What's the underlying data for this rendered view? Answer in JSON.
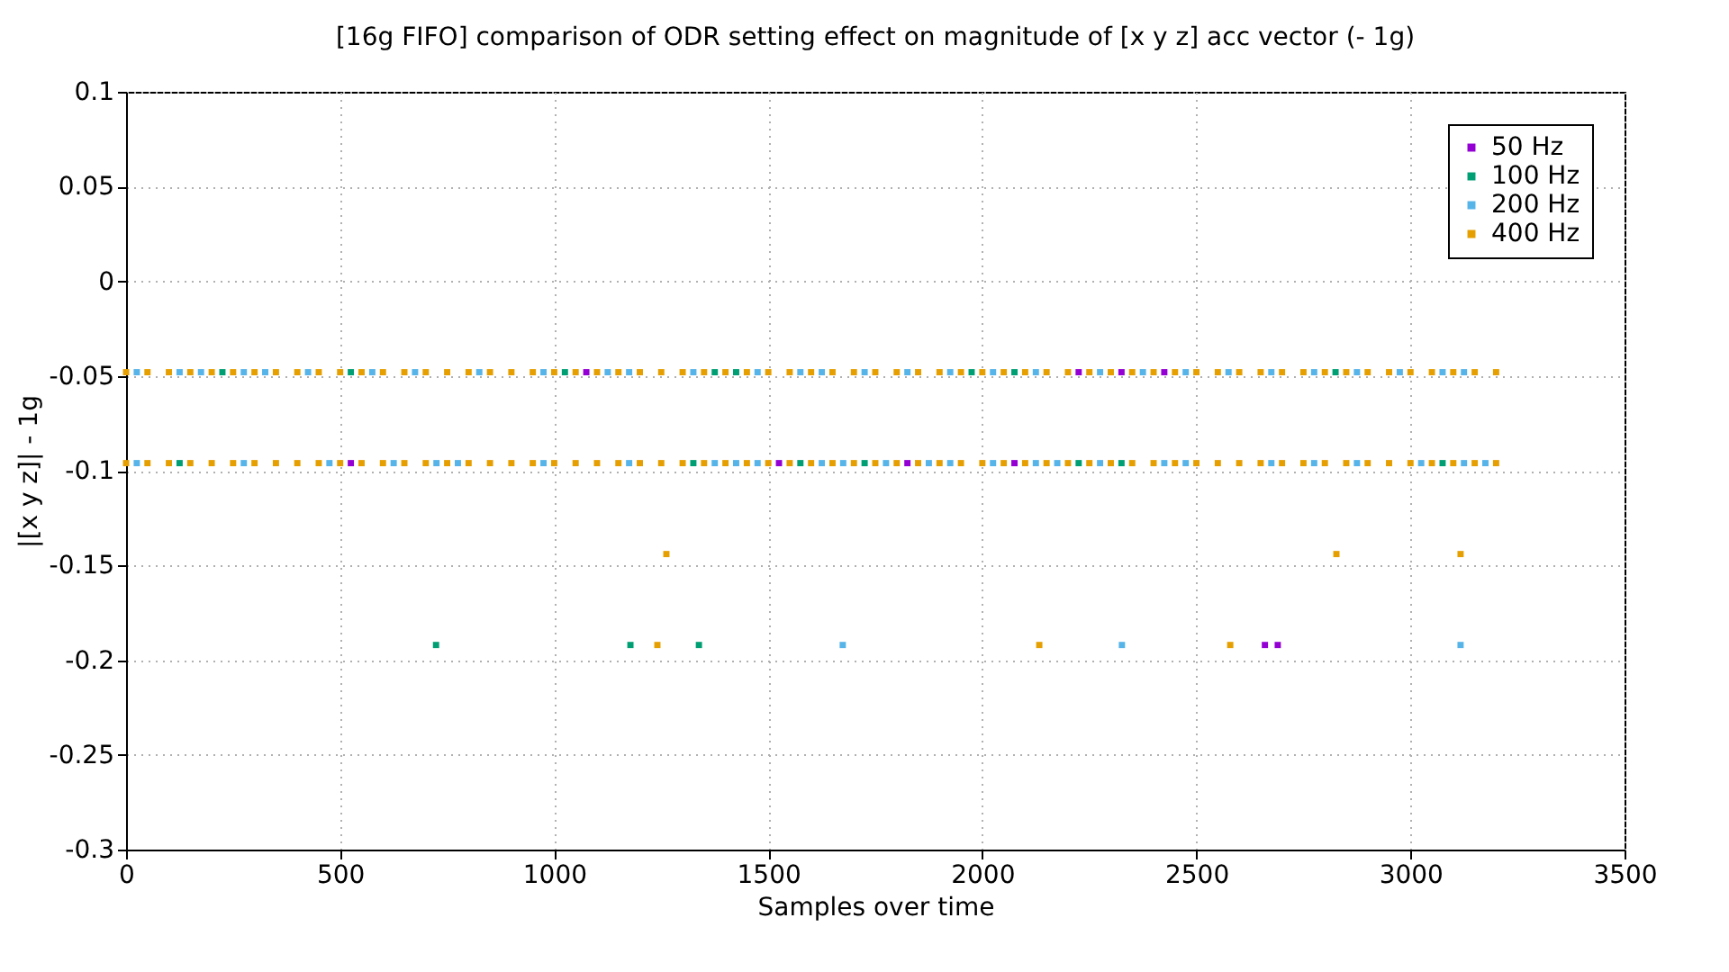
{
  "chart_data": {
    "type": "scatter",
    "title": "[16g FIFO] comparison of ODR setting effect on magnitude of [x y z] acc vector (- 1g)",
    "xlabel": "Samples over time",
    "ylabel": "|[x y z]| - 1g",
    "xlim": [
      0,
      3500
    ],
    "xticks": [
      0,
      500,
      1000,
      1500,
      2000,
      2500,
      3000,
      3500
    ],
    "ylim": [
      -0.3,
      0.1
    ],
    "yticks": [
      -0.3,
      -0.25,
      -0.2,
      -0.15,
      -0.1,
      -0.05,
      0,
      0.05,
      0.1
    ],
    "grid": true,
    "legend": "top right",
    "marker": "square",
    "series": [
      {
        "name": "50 Hz",
        "color": "#9400d3",
        "x": [
          1075,
          2225,
          2325,
          2425,
          525,
          1525,
          1825,
          2075,
          2660,
          2690
        ],
        "values": [
          -0.048,
          -0.048,
          -0.048,
          -0.048,
          -0.096,
          -0.096,
          -0.096,
          -0.096,
          -0.192,
          -0.192
        ]
      },
      {
        "name": "100 Hz",
        "color": "#009e73",
        "x": [
          225,
          525,
          1025,
          1375,
          1425,
          1975,
          2075,
          2825,
          125,
          1325,
          1575,
          1725,
          2225,
          2325,
          3075,
          724,
          1178,
          1338
        ],
        "values": [
          -0.048,
          -0.048,
          -0.048,
          -0.048,
          -0.048,
          -0.048,
          -0.048,
          -0.048,
          -0.096,
          -0.096,
          -0.096,
          -0.096,
          -0.096,
          -0.096,
          -0.096,
          -0.192,
          -0.192,
          -0.192
        ]
      },
      {
        "name": "200 Hz",
        "color": "#56b4e9",
        "x": [
          25,
          125,
          175,
          275,
          325,
          425,
          575,
          675,
          825,
          975,
          1125,
          1175,
          1325,
          1475,
          1575,
          1625,
          1725,
          1825,
          1925,
          2025,
          2125,
          2275,
          2375,
          2475,
          2575,
          2675,
          2775,
          2875,
          2975,
          3075,
          3125,
          25,
          275,
          475,
          625,
          725,
          775,
          975,
          1175,
          1375,
          1425,
          1475,
          1625,
          1675,
          1775,
          1875,
          1925,
          2025,
          2125,
          2175,
          2275,
          2425,
          2475,
          2675,
          2775,
          2875,
          3025,
          3125,
          3175,
          1674,
          2326,
          3117
        ],
        "values": [
          -0.048,
          -0.048,
          -0.048,
          -0.048,
          -0.048,
          -0.048,
          -0.048,
          -0.048,
          -0.048,
          -0.048,
          -0.048,
          -0.048,
          -0.048,
          -0.048,
          -0.048,
          -0.048,
          -0.048,
          -0.048,
          -0.048,
          -0.048,
          -0.048,
          -0.048,
          -0.048,
          -0.048,
          -0.048,
          -0.048,
          -0.048,
          -0.048,
          -0.048,
          -0.048,
          -0.048,
          -0.096,
          -0.096,
          -0.096,
          -0.096,
          -0.096,
          -0.096,
          -0.096,
          -0.096,
          -0.096,
          -0.096,
          -0.096,
          -0.096,
          -0.096,
          -0.096,
          -0.096,
          -0.096,
          -0.096,
          -0.096,
          -0.096,
          -0.096,
          -0.096,
          -0.096,
          -0.096,
          -0.096,
          -0.096,
          -0.096,
          -0.096,
          -0.096,
          -0.192,
          -0.192,
          -0.192
        ]
      },
      {
        "name": "400 Hz",
        "color": "#e69f00",
        "x": [
          0,
          50,
          100,
          150,
          200,
          250,
          300,
          350,
          400,
          450,
          500,
          550,
          600,
          650,
          700,
          750,
          800,
          850,
          900,
          950,
          1000,
          1050,
          1100,
          1150,
          1200,
          1250,
          1300,
          1350,
          1400,
          1450,
          1500,
          1550,
          1600,
          1650,
          1700,
          1750,
          1800,
          1850,
          1900,
          1950,
          2000,
          2050,
          2100,
          2150,
          2200,
          2250,
          2300,
          2350,
          2400,
          2450,
          2500,
          2550,
          2600,
          2650,
          2700,
          2750,
          2800,
          2850,
          2900,
          2950,
          3000,
          3050,
          3100,
          3150,
          3200,
          0,
          50,
          100,
          150,
          200,
          250,
          300,
          350,
          400,
          450,
          500,
          550,
          600,
          650,
          700,
          750,
          800,
          850,
          900,
          950,
          1000,
          1050,
          1100,
          1150,
          1200,
          1250,
          1300,
          1350,
          1400,
          1450,
          1500,
          1550,
          1600,
          1650,
          1700,
          1750,
          1800,
          1850,
          1900,
          1950,
          2000,
          2050,
          2100,
          2150,
          2200,
          2250,
          2300,
          2350,
          2400,
          2450,
          2500,
          2550,
          2600,
          2650,
          2700,
          2750,
          2800,
          2850,
          2900,
          2950,
          3000,
          3050,
          3100,
          3150,
          3200,
          1262,
          2827,
          3117,
          1241,
          2133,
          2579
        ],
        "values": [
          -0.048,
          -0.048,
          -0.048,
          -0.048,
          -0.048,
          -0.048,
          -0.048,
          -0.048,
          -0.048,
          -0.048,
          -0.048,
          -0.048,
          -0.048,
          -0.048,
          -0.048,
          -0.048,
          -0.048,
          -0.048,
          -0.048,
          -0.048,
          -0.048,
          -0.048,
          -0.048,
          -0.048,
          -0.048,
          -0.048,
          -0.048,
          -0.048,
          -0.048,
          -0.048,
          -0.048,
          -0.048,
          -0.048,
          -0.048,
          -0.048,
          -0.048,
          -0.048,
          -0.048,
          -0.048,
          -0.048,
          -0.048,
          -0.048,
          -0.048,
          -0.048,
          -0.048,
          -0.048,
          -0.048,
          -0.048,
          -0.048,
          -0.048,
          -0.048,
          -0.048,
          -0.048,
          -0.048,
          -0.048,
          -0.048,
          -0.048,
          -0.048,
          -0.048,
          -0.048,
          -0.048,
          -0.048,
          -0.048,
          -0.048,
          -0.048,
          -0.096,
          -0.096,
          -0.096,
          -0.096,
          -0.096,
          -0.096,
          -0.096,
          -0.096,
          -0.096,
          -0.096,
          -0.096,
          -0.096,
          -0.096,
          -0.096,
          -0.096,
          -0.096,
          -0.096,
          -0.096,
          -0.096,
          -0.096,
          -0.096,
          -0.096,
          -0.096,
          -0.096,
          -0.096,
          -0.096,
          -0.096,
          -0.096,
          -0.096,
          -0.096,
          -0.096,
          -0.096,
          -0.096,
          -0.096,
          -0.096,
          -0.096,
          -0.096,
          -0.096,
          -0.096,
          -0.096,
          -0.096,
          -0.096,
          -0.096,
          -0.096,
          -0.096,
          -0.096,
          -0.096,
          -0.096,
          -0.096,
          -0.096,
          -0.096,
          -0.096,
          -0.096,
          -0.096,
          -0.096,
          -0.096,
          -0.096,
          -0.096,
          -0.096,
          -0.096,
          -0.096,
          -0.096,
          -0.096,
          -0.096,
          -0.096,
          -0.144,
          -0.144,
          -0.144,
          -0.192,
          -0.192,
          -0.192
        ]
      }
    ]
  }
}
